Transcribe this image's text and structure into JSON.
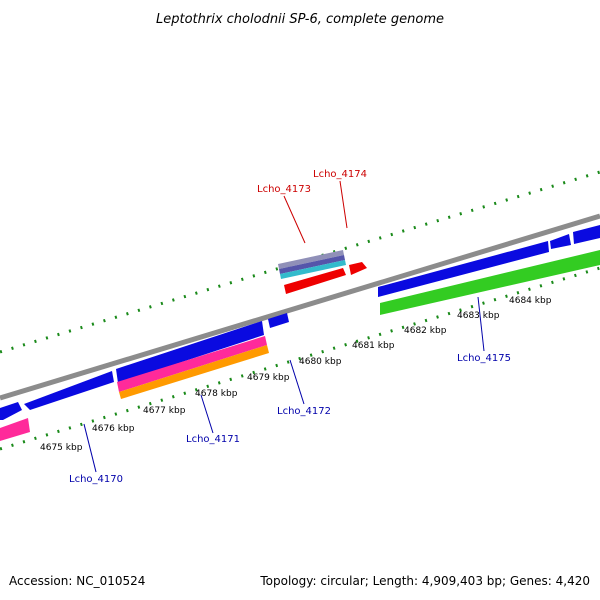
{
  "title": "Leptothrix cholodnii SP-6, complete genome",
  "footer": {
    "accession": "Accession: NC_010524",
    "summary": "Topology: circular; Length: 4,909,403 bp; Genes: 4,420"
  },
  "kbp_labels": [
    "4675 kbp",
    "4676 kbp",
    "4677 kbp",
    "4678 kbp",
    "4679 kbp",
    "4680 kbp",
    "4681 kbp",
    "4682 kbp",
    "4683 kbp",
    "4684 kbp"
  ],
  "gene_labels": [
    {
      "text": "Lcho_4173",
      "color": "#cc0000"
    },
    {
      "text": "Lcho_4174",
      "color": "#cc0000"
    },
    {
      "text": "Lcho_4170",
      "color": "#0000aa"
    },
    {
      "text": "Lcho_4171",
      "color": "#0000aa"
    },
    {
      "text": "Lcho_4172",
      "color": "#0000aa"
    },
    {
      "text": "Lcho_4175",
      "color": "#0000aa"
    }
  ],
  "colors": {
    "backbone": "#8c8c8c",
    "cds": "#0a0ae0",
    "rrna": "#ee0000",
    "gc_pink": "#ff2a9a",
    "gc_orange": "#ff9a00",
    "gc_green": "#33cc22",
    "ruler": "#1a8a1a"
  }
}
